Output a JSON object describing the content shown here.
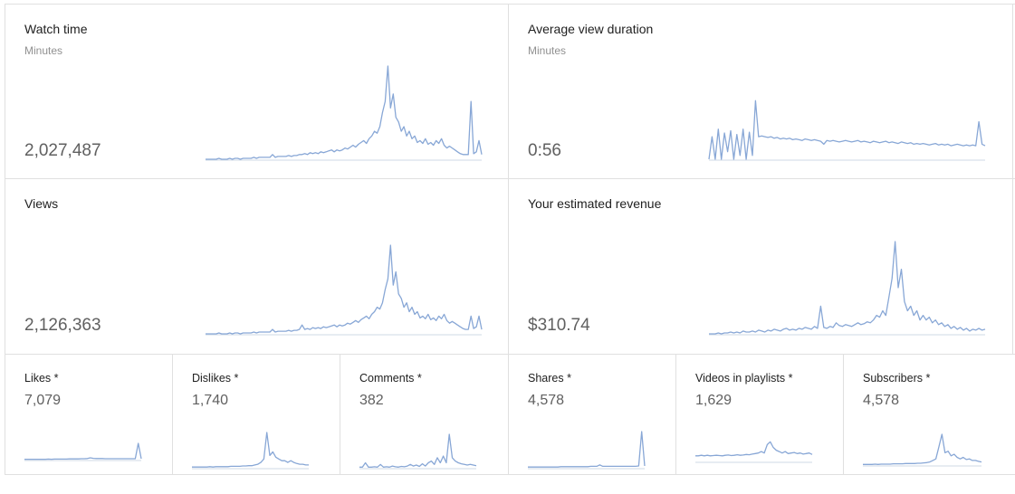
{
  "chart_data": [
    {
      "type": "line",
      "title": "Watch time",
      "subtitle": "Minutes",
      "total": "2,027,487",
      "values": [
        0,
        0,
        0,
        0,
        0,
        0.01,
        0,
        0,
        0,
        0.01,
        0,
        0.01,
        0.01,
        0,
        0.01,
        0.01,
        0.01,
        0.01,
        0.02,
        0.01,
        0.02,
        0.02,
        0.02,
        0.02,
        0.02,
        0.05,
        0.02,
        0.03,
        0.03,
        0.03,
        0.03,
        0.04,
        0.03,
        0.04,
        0.04,
        0.05,
        0.05,
        0.06,
        0.05,
        0.07,
        0.06,
        0.07,
        0.06,
        0.08,
        0.07,
        0.08,
        0.09,
        0.1,
        0.08,
        0.1,
        0.09,
        0.1,
        0.12,
        0.11,
        0.13,
        0.15,
        0.13,
        0.16,
        0.18,
        0.2,
        0.17,
        0.22,
        0.25,
        0.3,
        0.28,
        0.35,
        0.5,
        0.62,
        1.0,
        0.55,
        0.7,
        0.45,
        0.4,
        0.3,
        0.35,
        0.25,
        0.3,
        0.22,
        0.25,
        0.18,
        0.2,
        0.17,
        0.22,
        0.16,
        0.18,
        0.15,
        0.2,
        0.17,
        0.22,
        0.15,
        0.12,
        0.14,
        0.12,
        0.1,
        0.08,
        0.06,
        0.05,
        0.05,
        0.05,
        0.62,
        0.06,
        0.08,
        0.2,
        0.05
      ]
    },
    {
      "type": "line",
      "title": "Average view duration",
      "subtitle": "Minutes",
      "total": "0:56",
      "values": [
        0.0,
        0.3,
        0.0,
        0.4,
        0.0,
        0.35,
        0.1,
        0.38,
        0.0,
        0.33,
        0.05,
        0.4,
        0.0,
        0.36,
        0.05,
        0.78,
        0.3,
        0.31,
        0.3,
        0.29,
        0.3,
        0.28,
        0.29,
        0.27,
        0.28,
        0.27,
        0.28,
        0.26,
        0.27,
        0.26,
        0.25,
        0.27,
        0.26,
        0.25,
        0.26,
        0.25,
        0.24,
        0.2,
        0.25,
        0.24,
        0.25,
        0.24,
        0.23,
        0.24,
        0.25,
        0.24,
        0.23,
        0.24,
        0.25,
        0.23,
        0.24,
        0.23,
        0.22,
        0.24,
        0.23,
        0.22,
        0.23,
        0.24,
        0.22,
        0.23,
        0.22,
        0.21,
        0.23,
        0.22,
        0.21,
        0.22,
        0.2,
        0.21,
        0.2,
        0.21,
        0.2,
        0.19,
        0.2,
        0.21,
        0.19,
        0.2,
        0.19,
        0.2,
        0.18,
        0.19,
        0.2,
        0.19,
        0.18,
        0.19,
        0.18,
        0.19,
        0.18,
        0.5,
        0.2,
        0.18
      ]
    },
    {
      "type": "line",
      "title": "Views",
      "total": "2,126,363",
      "values": [
        0,
        0,
        0,
        0,
        0,
        0.01,
        0,
        0,
        0,
        0.01,
        0,
        0.01,
        0.01,
        0,
        0.01,
        0.01,
        0.01,
        0.01,
        0.02,
        0.01,
        0.02,
        0.02,
        0.02,
        0.02,
        0.02,
        0.05,
        0.02,
        0.03,
        0.03,
        0.03,
        0.03,
        0.04,
        0.03,
        0.04,
        0.04,
        0.05,
        0.1,
        0.05,
        0.06,
        0.05,
        0.07,
        0.06,
        0.07,
        0.06,
        0.08,
        0.07,
        0.08,
        0.09,
        0.1,
        0.08,
        0.1,
        0.09,
        0.1,
        0.12,
        0.11,
        0.13,
        0.15,
        0.13,
        0.16,
        0.18,
        0.2,
        0.17,
        0.22,
        0.25,
        0.3,
        0.28,
        0.35,
        0.5,
        0.62,
        1.0,
        0.55,
        0.7,
        0.45,
        0.4,
        0.3,
        0.35,
        0.25,
        0.3,
        0.22,
        0.25,
        0.18,
        0.2,
        0.17,
        0.22,
        0.16,
        0.18,
        0.15,
        0.2,
        0.17,
        0.22,
        0.15,
        0.12,
        0.14,
        0.12,
        0.1,
        0.08,
        0.06,
        0.05,
        0.05,
        0.2,
        0.06,
        0.08,
        0.2,
        0.05
      ]
    },
    {
      "type": "line",
      "title": "Your estimated revenue",
      "total": "$310.74",
      "values": [
        0,
        0,
        0,
        0.01,
        0,
        0.01,
        0.01,
        0.02,
        0.01,
        0.02,
        0.01,
        0.03,
        0.02,
        0.02,
        0.03,
        0.02,
        0.04,
        0.03,
        0.02,
        0.04,
        0.03,
        0.05,
        0.04,
        0.03,
        0.05,
        0.06,
        0.04,
        0.05,
        0.04,
        0.06,
        0.05,
        0.07,
        0.06,
        0.05,
        0.08,
        0.06,
        0.3,
        0.07,
        0.06,
        0.08,
        0.07,
        0.12,
        0.09,
        0.08,
        0.1,
        0.09,
        0.08,
        0.1,
        0.12,
        0.1,
        0.11,
        0.13,
        0.12,
        0.15,
        0.2,
        0.18,
        0.25,
        0.2,
        0.4,
        0.6,
        1.0,
        0.5,
        0.7,
        0.35,
        0.25,
        0.3,
        0.2,
        0.25,
        0.15,
        0.2,
        0.15,
        0.18,
        0.12,
        0.15,
        0.1,
        0.12,
        0.08,
        0.1,
        0.06,
        0.08,
        0.05,
        0.07,
        0.04,
        0.06,
        0.03,
        0.05,
        0.04,
        0.06,
        0.04,
        0.05
      ]
    },
    {
      "type": "line",
      "title": "Likes *",
      "total": "7,079",
      "values": [
        0.02,
        0.02,
        0.02,
        0.02,
        0.02,
        0.02,
        0.02,
        0.02,
        0.03,
        0.02,
        0.03,
        0.03,
        0.03,
        0.03,
        0.03,
        0.04,
        0.04,
        0.04,
        0.04,
        0.05,
        0.05,
        0.06,
        0.1,
        0.07,
        0.06,
        0.06,
        0.06,
        0.05,
        0.05,
        0.05,
        0.05,
        0.05,
        0.05,
        0.05,
        0.05,
        0.05,
        0.05,
        0.05,
        0.9,
        0.05
      ]
    },
    {
      "type": "line",
      "title": "Dislikes *",
      "total": "1,740",
      "values": [
        0.02,
        0.02,
        0.02,
        0.02,
        0.02,
        0.02,
        0.03,
        0.02,
        0.03,
        0.03,
        0.03,
        0.03,
        0.03,
        0.04,
        0.04,
        0.04,
        0.04,
        0.05,
        0.05,
        0.06,
        0.06,
        0.08,
        0.1,
        0.15,
        0.25,
        1.0,
        0.35,
        0.45,
        0.3,
        0.25,
        0.2,
        0.2,
        0.15,
        0.2,
        0.15,
        0.12,
        0.1,
        0.1,
        0.08,
        0.08
      ]
    },
    {
      "type": "line",
      "title": "Comments *",
      "total": "382",
      "values": [
        0.02,
        0.02,
        0.15,
        0.02,
        0.02,
        0.03,
        0.02,
        0.1,
        0.02,
        0.03,
        0.02,
        0.05,
        0.03,
        0.02,
        0.04,
        0.03,
        0.05,
        0.1,
        0.05,
        0.08,
        0.04,
        0.12,
        0.05,
        0.15,
        0.2,
        0.1,
        0.3,
        0.15,
        0.35,
        0.15,
        1.0,
        0.3,
        0.2,
        0.15,
        0.12,
        0.1,
        0.08,
        0.1,
        0.08,
        0.06
      ]
    },
    {
      "type": "line",
      "title": "Shares *",
      "total": "4,578",
      "values": [
        0.02,
        0.02,
        0.02,
        0.02,
        0.02,
        0.02,
        0.02,
        0.02,
        0.02,
        0.02,
        0.02,
        0.03,
        0.03,
        0.03,
        0.03,
        0.03,
        0.03,
        0.03,
        0.03,
        0.03,
        0.03,
        0.04,
        0.04,
        0.04,
        0.08,
        0.04,
        0.04,
        0.04,
        0.04,
        0.04,
        0.04,
        0.04,
        0.04,
        0.04,
        0.04,
        0.04,
        0.04,
        0.05,
        1.0,
        0.05
      ]
    },
    {
      "type": "line",
      "title": "Videos in playlists *",
      "total": "1,629",
      "values": [
        0.2,
        0.2,
        0.22,
        0.2,
        0.22,
        0.2,
        0.21,
        0.22,
        0.21,
        0.2,
        0.22,
        0.23,
        0.21,
        0.22,
        0.24,
        0.22,
        0.23,
        0.25,
        0.24,
        0.26,
        0.28,
        0.3,
        0.35,
        0.3,
        0.6,
        0.7,
        0.5,
        0.4,
        0.35,
        0.3,
        0.35,
        0.28,
        0.3,
        0.32,
        0.28,
        0.3,
        0.26,
        0.28,
        0.3,
        0.25
      ]
    },
    {
      "type": "line",
      "title": "Subscribers *",
      "total": "4,578",
      "values": [
        0.02,
        0.02,
        0.02,
        0.02,
        0.03,
        0.02,
        0.03,
        0.03,
        0.03,
        0.03,
        0.04,
        0.04,
        0.04,
        0.04,
        0.05,
        0.05,
        0.05,
        0.05,
        0.06,
        0.06,
        0.07,
        0.08,
        0.1,
        0.15,
        0.2,
        0.6,
        1.0,
        0.4,
        0.45,
        0.3,
        0.35,
        0.25,
        0.2,
        0.25,
        0.18,
        0.2,
        0.15,
        0.15,
        0.12,
        0.1
      ]
    }
  ]
}
